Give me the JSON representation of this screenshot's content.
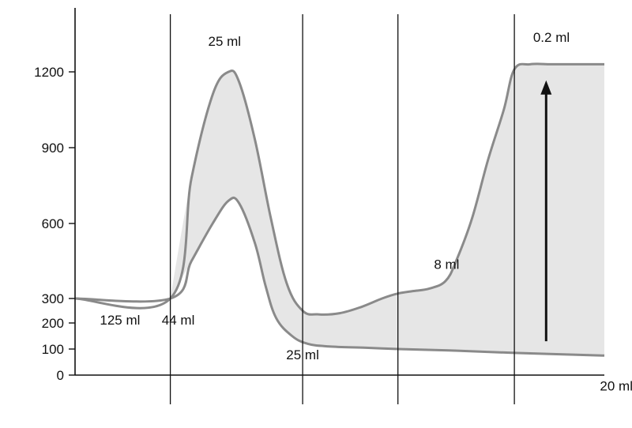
{
  "chart_data": {
    "type": "area",
    "title": "",
    "xlabel": "",
    "ylabel": "",
    "ylim": [
      0,
      1400
    ],
    "y_ticks": [
      0,
      100,
      200,
      300,
      600,
      900,
      1200
    ],
    "y_tick_labels": [
      "0",
      "100",
      "200",
      "300",
      "600",
      "900",
      "1200"
    ],
    "grid": false,
    "legend": "none",
    "fill_color": "#e6e6e6",
    "line_color": "#8a8a8a",
    "axis_color": "#111111",
    "x_range": [
      0,
      100
    ],
    "segment_boundaries": [
      18,
      43,
      61,
      83
    ],
    "series": [
      {
        "x": [
          0,
          18,
          22,
          26,
          29,
          31,
          34,
          37,
          40,
          43,
          46,
          50,
          54,
          58,
          61,
          64,
          67,
          70,
          72,
          75,
          78,
          81,
          83,
          86,
          90,
          95,
          100
        ],
        "values": [
          300,
          300,
          780,
          1110,
          1200,
          1160,
          930,
          620,
          360,
          250,
          235,
          240,
          265,
          300,
          320,
          330,
          340,
          370,
          450,
          620,
          850,
          1050,
          1210,
          1230,
          1230,
          1230,
          1230
        ]
      },
      {
        "x": [
          0,
          18,
          22,
          26,
          29,
          31,
          34,
          36,
          38,
          41,
          44,
          48,
          55,
          61,
          70,
          83,
          100
        ],
        "values": [
          300,
          300,
          450,
          600,
          690,
          680,
          520,
          350,
          220,
          150,
          120,
          110,
          105,
          100,
          95,
          85,
          75
        ]
      }
    ],
    "annotations": [
      {
        "text": "125 ml",
        "x": 7,
        "y": 265
      },
      {
        "text": "44 ml",
        "x": 18,
        "y": 265
      },
      {
        "text": "25 ml",
        "x": 29,
        "y": 1290
      },
      {
        "text": "25 ml",
        "x": 43,
        "y": 55
      },
      {
        "text": "8 ml",
        "x": 72,
        "y": 400
      },
      {
        "text": "0.2 ml",
        "x": 90,
        "y": 1300
      },
      {
        "text": "20 ml",
        "x": 100,
        "y": -5
      }
    ],
    "arrow": {
      "x": 89,
      "from": 130,
      "to": 1160
    }
  }
}
